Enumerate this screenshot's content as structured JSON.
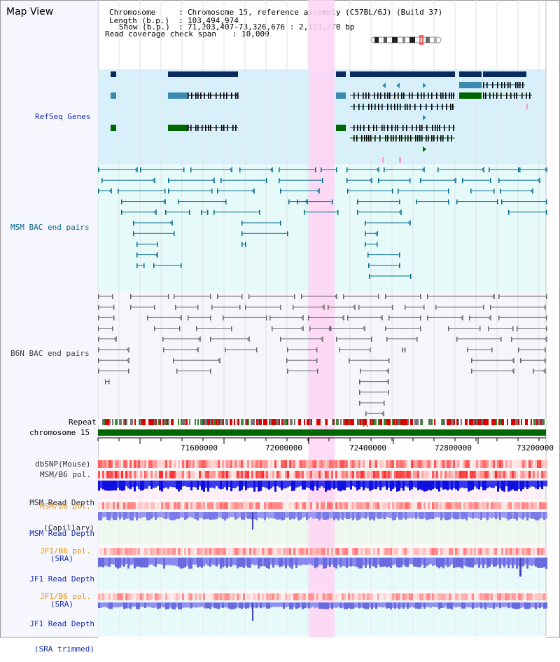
{
  "app": {
    "title": "Map View"
  },
  "header": {
    "chromosome_label": "Chromosome",
    "chromosome_value": "Chromosome 15, reference assembly (C57BL/6J) (Build 37)",
    "length_label": "Length (b.p.)",
    "length_value": "103,494,974",
    "show_label": "Show (b.p.)",
    "show_value": "71,203,407-73,326,676 : 2,123,270 bp",
    "coverage_label": "Read coverage check span",
    "coverage_value": "10,000"
  },
  "tracks": {
    "refseq": "RefSeq Genes",
    "msm_bac": "MSM BAC end pairs",
    "b6n_bac": "B6N BAC end pairs",
    "repeat": "Repeat",
    "chromosome": "chromosome 15",
    "dbsnp": "dbSNP(Mouse)",
    "msm_b6_pol_1": "MSM/B6 pol.",
    "msm_depth_cap_1": "MSM Read Depth",
    "msm_depth_cap_2": "(Capillary)",
    "msm_b6_pol_2": "MSM/B6 pol.",
    "msm_depth_sra_1": "MSM Read Depth",
    "msm_depth_sra_2": "(SRA)",
    "jf1_b6_pol_1": "JF1/B6 pol.",
    "jf1_depth_sra_1": "JF1 Read Depth",
    "jf1_depth_sra_2": "(SRA)",
    "jf1_b6_pol_2": "JF1/B6 pol.",
    "jf1_depth_trim_1": "JF1 Read Depth",
    "jf1_depth_trim_2": "(SRA trimmed)"
  },
  "axis": {
    "ticks": [
      "71600000",
      "72000000",
      "72400000",
      "72800000",
      "73200000"
    ]
  },
  "colors": {
    "refseq_label": "#1a2fa8",
    "msm_label": "#006a8a",
    "b6n_label": "#444444",
    "pol_label": "#e89000",
    "depth_label": "#1a2fa8",
    "highlight": "#ffd4f4",
    "chromosome_bar": "#006600"
  }
}
